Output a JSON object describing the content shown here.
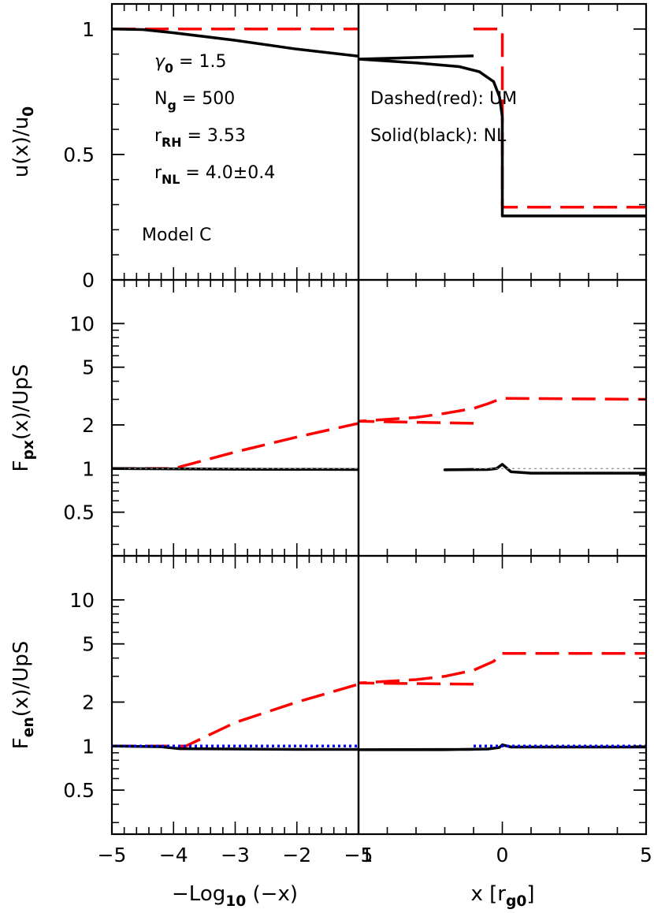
{
  "chart_data": [
    {
      "type": "line",
      "panel": "top",
      "ylabel": "u(x)/u",
      "ylabel_sub": "0",
      "ylim": [
        0,
        1.1
      ],
      "yticks": [
        {
          "v": 0,
          "t": "0"
        },
        {
          "v": 0.5,
          "t": "0.5"
        },
        {
          "v": 1,
          "t": "1"
        }
      ],
      "annotations": [
        {
          "main": "γ",
          "sub": "0",
          "rest": " = 1.5"
        },
        {
          "main": "N",
          "sub": "g",
          "rest": " = 500"
        },
        {
          "main": "r",
          "sub": "RH",
          "rest": " = 3.53"
        },
        {
          "main": "r",
          "sub": "NL",
          "rest": " = 4.0±0.4"
        }
      ],
      "model_label": "Model C",
      "legend": [
        "Dashed(red): UM",
        "Solid(black): NL"
      ],
      "series": [
        {
          "name": "UM",
          "color": "#ff0000",
          "style": "dashed",
          "left": [
            [
              -5,
              1.0
            ],
            [
              -1,
              1.0
            ]
          ],
          "right": [
            [
              -1,
              1.0
            ],
            [
              0,
              1.0
            ],
            [
              0,
              0.29
            ],
            [
              5,
              0.29
            ]
          ]
        },
        {
          "name": "NL",
          "color": "#000000",
          "style": "solid",
          "left": [
            [
              -5,
              1.0
            ],
            [
              -4.5,
              0.998
            ],
            [
              -4,
              0.985
            ],
            [
              -3,
              0.955
            ],
            [
              -2,
              0.92
            ],
            [
              -1,
              0.892
            ]
          ],
          "right": [
            [
              -1,
              0.893
            ],
            [
              -5,
              0.88
            ],
            [
              -3,
              0.865
            ],
            [
              -1.5,
              0.85
            ],
            [
              -0.8,
              0.83
            ],
            [
              -0.3,
              0.79
            ],
            [
              -0.1,
              0.73
            ],
            [
              0,
              0.65
            ],
            [
              0,
              0.255
            ],
            [
              5,
              0.255
            ]
          ]
        }
      ]
    },
    {
      "type": "line",
      "panel": "middle",
      "ylabel": "F",
      "ylabel_sub": "px",
      "ylabel_rest": "(x)/UpS",
      "yscale": "log",
      "ylim": [
        0.25,
        20
      ],
      "yticks": [
        {
          "v": 0.5,
          "t": "0.5"
        },
        {
          "v": 1,
          "t": "1"
        },
        {
          "v": 2,
          "t": "2"
        },
        {
          "v": 5,
          "t": "5"
        },
        {
          "v": 10,
          "t": "10"
        }
      ],
      "series": [
        {
          "name": "UM",
          "color": "#ff0000",
          "style": "dashed",
          "left": [
            [
              -5,
              1.0
            ],
            [
              -4,
              1.0
            ],
            [
              -3,
              1.3
            ],
            [
              -2,
              1.65
            ],
            [
              -1,
              2.05
            ]
          ],
          "right": [
            [
              -1,
              2.05
            ],
            [
              -5,
              2.12
            ],
            [
              -3,
              2.25
            ],
            [
              -2,
              2.4
            ],
            [
              -1,
              2.6
            ],
            [
              -0.5,
              2.8
            ],
            [
              0,
              3.05
            ],
            [
              5,
              3.0
            ]
          ]
        },
        {
          "name": "NL",
          "color": "#000000",
          "style": "solid",
          "left": [
            [
              -5,
              1.0
            ],
            [
              -3,
              0.99
            ],
            [
              -1,
              0.985
            ]
          ],
          "right": [
            [
              -1,
              0.985
            ],
            [
              -2,
              0.98
            ],
            [
              -0.5,
              0.985
            ],
            [
              -0.2,
              1.0
            ],
            [
              0,
              1.07
            ],
            [
              0.3,
              0.95
            ],
            [
              1,
              0.93
            ],
            [
              5,
              0.93
            ]
          ]
        },
        {
          "name": "ref",
          "color": "#888888",
          "style": "dotted",
          "left": [
            [
              -5,
              1.0
            ],
            [
              -1,
              1.0
            ]
          ],
          "right": [
            [
              -1,
              1.0
            ],
            [
              5,
              1.0
            ]
          ]
        }
      ]
    },
    {
      "type": "line",
      "panel": "bottom",
      "ylabel": "F",
      "ylabel_sub": "en",
      "ylabel_rest": "(x)/UpS",
      "yscale": "log",
      "ylim": [
        0.25,
        20
      ],
      "yticks": [
        {
          "v": 0.5,
          "t": "0.5"
        },
        {
          "v": 1,
          "t": "1"
        },
        {
          "v": 2,
          "t": "2"
        },
        {
          "v": 5,
          "t": "5"
        },
        {
          "v": 10,
          "t": "10"
        }
      ],
      "xlabel_left": {
        "pre": "−Log",
        "sub": "10",
        "post": " (−x)"
      },
      "xlabel_right": {
        "pre": "x [r",
        "sub": "g0",
        "post": "]"
      },
      "xticks_left": [
        {
          "v": -5,
          "t": "−5"
        },
        {
          "v": -4,
          "t": "−4"
        },
        {
          "v": -3,
          "t": "−3"
        },
        {
          "v": -2,
          "t": "−2"
        },
        {
          "v": -1,
          "t": "−1"
        }
      ],
      "xticks_right": [
        {
          "v": -5,
          "t": "−5"
        },
        {
          "v": 0,
          "t": "0"
        },
        {
          "v": 5,
          "t": "5"
        }
      ],
      "series": [
        {
          "name": "UM",
          "color": "#ff0000",
          "style": "dashed",
          "left": [
            [
              -5,
              1.0
            ],
            [
              -3.8,
              1.0
            ],
            [
              -3,
              1.45
            ],
            [
              -2,
              2.0
            ],
            [
              -1,
              2.65
            ]
          ],
          "right": [
            [
              -1,
              2.65
            ],
            [
              -5,
              2.7
            ],
            [
              -3,
              2.85
            ],
            [
              -2,
              3.0
            ],
            [
              -1,
              3.3
            ],
            [
              -0.3,
              3.8
            ],
            [
              0,
              4.3
            ],
            [
              5,
              4.3
            ]
          ]
        },
        {
          "name": "NL",
          "color": "#000000",
          "style": "solid",
          "left": [
            [
              -5,
              1.0
            ],
            [
              -4.2,
              0.99
            ],
            [
              -3.9,
              0.96
            ],
            [
              -3,
              0.955
            ],
            [
              -2,
              0.95
            ],
            [
              -1,
              0.95
            ]
          ],
          "right": [
            [
              -1,
              0.95
            ],
            [
              -5,
              0.945
            ],
            [
              -2,
              0.945
            ],
            [
              -0.5,
              0.955
            ],
            [
              -0.1,
              0.98
            ],
            [
              0,
              1.02
            ],
            [
              0.3,
              0.985
            ],
            [
              5,
              0.985
            ]
          ]
        },
        {
          "name": "ref",
          "color": "#0000ff",
          "style": "dotted",
          "left": [
            [
              -5,
              1.0
            ],
            [
              -1,
              1.0
            ]
          ],
          "right": [
            [
              -1,
              1.0
            ],
            [
              5,
              1.0
            ]
          ]
        }
      ]
    }
  ]
}
